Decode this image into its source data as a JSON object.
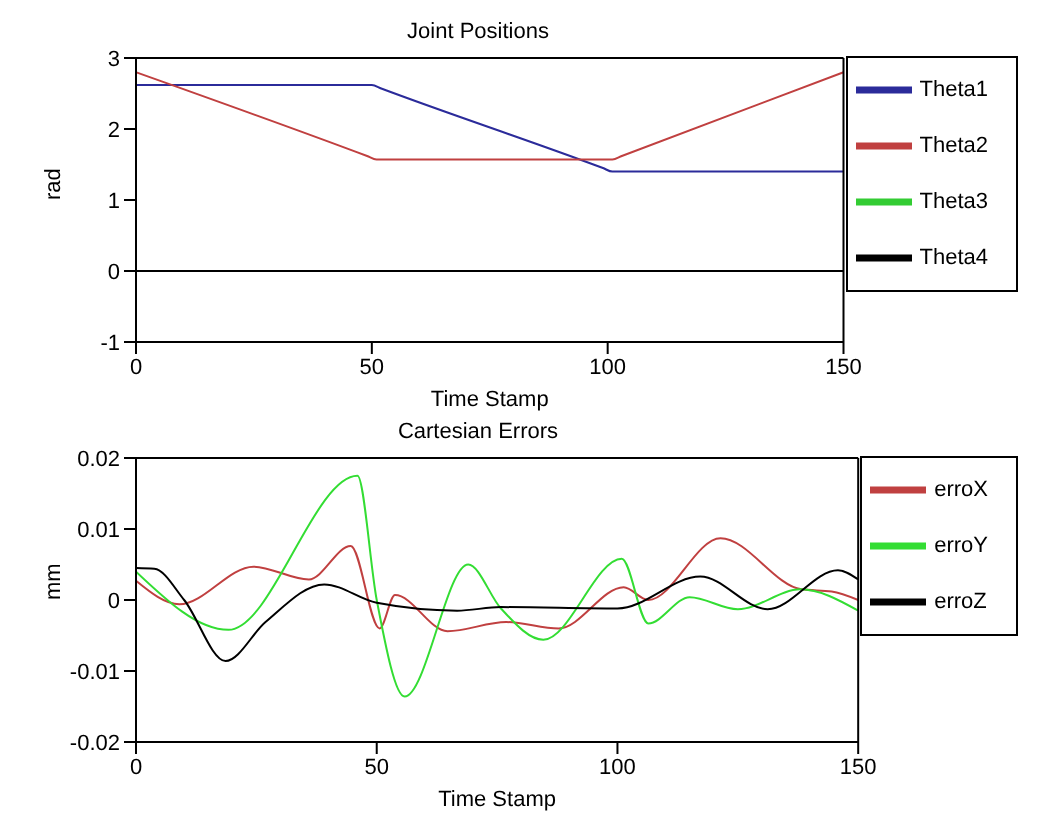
{
  "chart_data": [
    {
      "type": "line",
      "title": "Joint Positions",
      "xlabel": "Time Stamp",
      "ylabel": "rad",
      "xlim": [
        0,
        150
      ],
      "xticks": [
        0,
        50,
        100,
        150
      ],
      "ylim": [
        -1,
        3
      ],
      "yticks": [
        -1,
        0,
        1,
        2,
        3
      ],
      "grid": false,
      "legend": "top right",
      "series": [
        {
          "name": "Theta1",
          "color": "#2b2b9a",
          "x": [
            0,
            50,
            52,
            99,
            101,
            150
          ],
          "values": [
            2.62,
            2.62,
            2.57,
            1.45,
            1.4,
            1.4
          ]
        },
        {
          "name": "Theta2",
          "color": "#c04040",
          "x": [
            0,
            49,
            51,
            101,
            103,
            150
          ],
          "values": [
            2.8,
            1.62,
            1.57,
            1.57,
            1.62,
            2.8
          ]
        },
        {
          "name": "Theta3",
          "color": "#33cc33"
        },
        {
          "name": "Theta4",
          "color": "#000000",
          "x": [
            0,
            150
          ],
          "values": [
            0,
            0
          ]
        }
      ]
    },
    {
      "type": "line",
      "title": "Cartesian Errors",
      "xlabel": "Time Stamp",
      "ylabel": "mm",
      "xlim": [
        0,
        150
      ],
      "xticks": [
        0,
        50,
        100,
        150
      ],
      "ylim": [
        -0.02,
        0.02
      ],
      "yticks": [
        -0.02,
        -0.01,
        0,
        0.01,
        0.02
      ],
      "grid": false,
      "legend": "top right",
      "series": [
        {
          "name": "erroX",
          "color": "#c04040",
          "x": [
            0,
            9,
            24.4,
            35.9,
            44.6,
            50.6,
            53.8,
            64.7,
            76.9,
            87.8,
            101.3,
            106.4,
            121.4,
            138.2,
            144.5,
            150
          ],
          "values": [
            0.0027,
            -0.0006,
            0.0047,
            0.0029,
            0.0076,
            -0.004,
            0.0007,
            -0.0044,
            -0.0031,
            -0.004,
            0.0018,
            0,
            0.0087,
            0.0015,
            0.0012,
            0
          ]
        },
        {
          "name": "erroY",
          "color": "#33dd33",
          "x": [
            0,
            19.2,
            46,
            50,
            55.8,
            69,
            75.8,
            84.6,
            100.9,
            106.4,
            115,
            125,
            138,
            150
          ],
          "values": [
            0.004,
            -0.0042,
            0.0175,
            0,
            -0.0136,
            0.005,
            -0.0012,
            -0.0056,
            0.0058,
            -0.0033,
            0.0004,
            -0.0013,
            0.0015,
            -0.0015
          ]
        },
        {
          "name": "erroZ",
          "color": "#000000",
          "x": [
            0,
            3.8,
            10,
            18.6,
            26.9,
            39.1,
            50,
            66.7,
            75.8,
            100,
            117.2,
            131.2,
            145.8,
            150
          ],
          "values": [
            0.0045,
            0.0044,
            0,
            -0.0086,
            -0.0031,
            0.0022,
            -0.0004,
            -0.0015,
            -0.001,
            -0.0012,
            0.0033,
            -0.0013,
            0.0042,
            0.0029
          ]
        }
      ]
    }
  ]
}
